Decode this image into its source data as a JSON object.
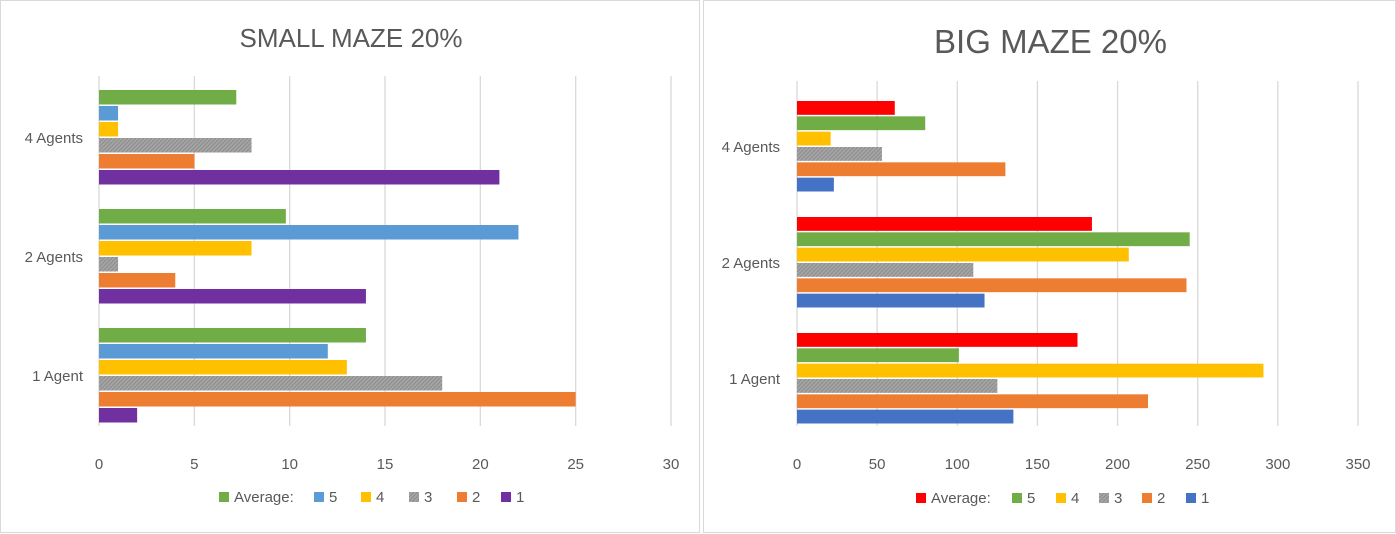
{
  "chart_data": [
    {
      "type": "bar",
      "orientation": "horizontal",
      "title": "SMALL MAZE 20%",
      "categories": [
        "1 Agent",
        "2 Agents",
        "4 Agents"
      ],
      "xlim": [
        0,
        30
      ],
      "xticks": [
        "0",
        "5",
        "10",
        "15",
        "20",
        "25",
        "30"
      ],
      "grid": "vertical",
      "legend_position": "bottom",
      "series": [
        {
          "name": "Average:",
          "color": "#70ad47",
          "values": [
            14,
            9.8,
            7.2
          ]
        },
        {
          "name": "5",
          "color": "#5b9bd5",
          "values": [
            12,
            22,
            1
          ]
        },
        {
          "name": "4",
          "color": "#ffc000",
          "values": [
            13,
            8,
            1
          ]
        },
        {
          "name": "3",
          "color": "#a5a5a5",
          "pattern": true,
          "values": [
            18,
            1,
            8
          ]
        },
        {
          "name": "2",
          "color": "#ed7d31",
          "values": [
            25,
            4,
            5
          ]
        },
        {
          "name": "1",
          "color": "#7030a0",
          "values": [
            2,
            14,
            21
          ]
        }
      ]
    },
    {
      "type": "bar",
      "orientation": "horizontal",
      "title": "BIG MAZE 20%",
      "categories": [
        "1 Agent",
        "2 Agents",
        "4 Agents"
      ],
      "xlim": [
        0,
        350
      ],
      "xticks": [
        "0",
        "50",
        "100",
        "150",
        "200",
        "250",
        "300",
        "350"
      ],
      "grid": "vertical",
      "legend_position": "bottom",
      "series": [
        {
          "name": "Average:",
          "color": "#ff0000",
          "values": [
            175,
            184,
            61
          ]
        },
        {
          "name": "5",
          "color": "#70ad47",
          "values": [
            101,
            245,
            80
          ]
        },
        {
          "name": "4",
          "color": "#ffc000",
          "values": [
            291,
            207,
            21
          ]
        },
        {
          "name": "3",
          "color": "#a5a5a5",
          "pattern": true,
          "values": [
            125,
            110,
            53
          ]
        },
        {
          "name": "2",
          "color": "#ed7d31",
          "values": [
            219,
            243,
            130
          ]
        },
        {
          "name": "1",
          "color": "#4472c4",
          "values": [
            135,
            117,
            23
          ]
        }
      ]
    }
  ]
}
